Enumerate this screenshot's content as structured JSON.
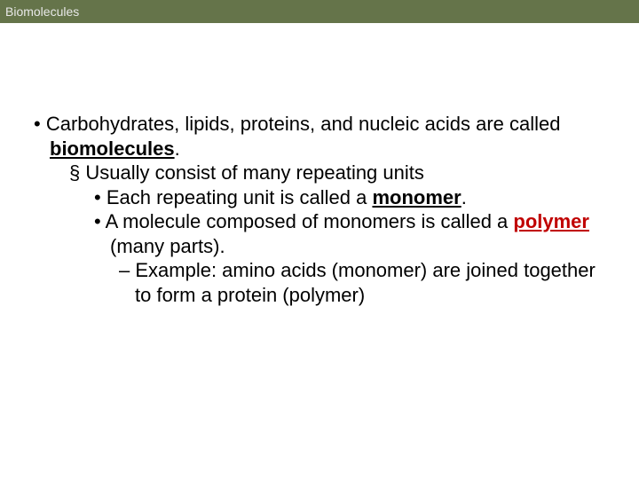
{
  "header": {
    "title": "Biomolecules",
    "bg_color": "#65744a",
    "text_color": "#e8e8e8",
    "fontsize": 14
  },
  "content": {
    "fontsize": 22,
    "text_color": "#000000",
    "accent_color": "#c00000",
    "l1a": "Carbohydrates, lipids, proteins, and nucleic acids are called ",
    "l1b": "biomolecules",
    "l1c": ".",
    "l2": "Usually consist of many repeating units",
    "l3a": "Each repeating unit is called a ",
    "l3b": "monomer",
    "l3c": ".",
    "l3d": "A molecule composed of monomers is called a ",
    "l3e": "polymer",
    "l3f": " (many parts).",
    "l4a": "Example: amino acids (monomer) are joined together to form a protein (polymer)"
  }
}
